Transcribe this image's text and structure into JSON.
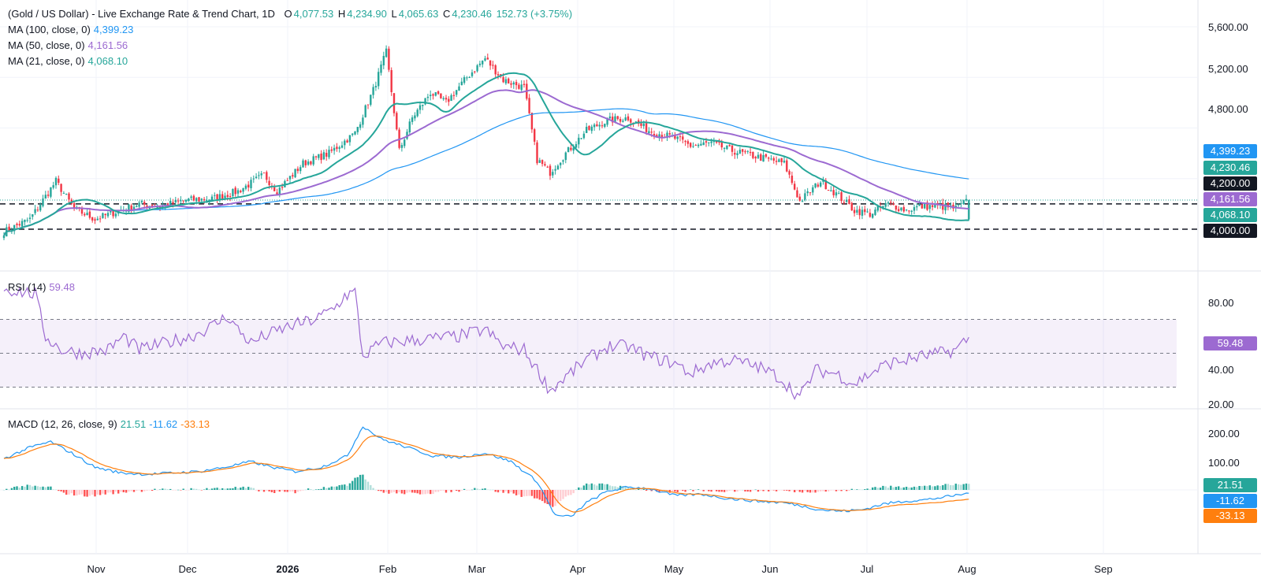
{
  "header": {
    "title": "(Gold / US Dollar) - Live Exchange Rate & Trend Chart, 1D",
    "open_label": "O",
    "open": "4,077.53",
    "high_label": "H",
    "high": "4,234.90",
    "low_label": "L",
    "low": "4,065.63",
    "close_label": "C",
    "close": "4,230.46",
    "change": "152.73 (+3.75%)"
  },
  "indicators": {
    "ma100": {
      "label": "MA (100, close, 0)",
      "value": "4,399.23",
      "color": "#2196f3"
    },
    "ma50": {
      "label": "MA (50, close, 0)",
      "value": "4,161.56",
      "color": "#9c6ad1"
    },
    "ma21": {
      "label": "MA (21, close, 0)",
      "value": "4,068.10",
      "color": "#26a69a"
    },
    "rsi": {
      "label": "RSI (14)",
      "value": "59.48",
      "color": "#9c6ad1"
    },
    "macd": {
      "label": "MACD (12, 26, close, 9)",
      "histogram": "21.51",
      "macd": "-11.62",
      "signal": "-33.13",
      "hist_color": "#26a69a",
      "macd_color": "#2196f3",
      "signal_color": "#ff7f0e"
    }
  },
  "price_axis": {
    "ticks": [
      "5,600.00",
      "5,200.00",
      "4,800.00",
      "4,000.00"
    ],
    "tags": [
      {
        "text": "4,399.23",
        "color": "#2196f3"
      },
      {
        "text": "4,230.46",
        "color": "#26a69a"
      },
      {
        "text": "4,200.00",
        "color": "#131722"
      },
      {
        "text": "4,161.56",
        "color": "#9c6ad1"
      },
      {
        "text": "4,068.10",
        "color": "#26a69a"
      },
      {
        "text": "4,000.00",
        "color": "#131722"
      }
    ]
  },
  "rsi_axis": {
    "ticks": [
      "80.00",
      "40.00",
      "20.00"
    ],
    "tag": "59.48"
  },
  "macd_axis": {
    "ticks": [
      "200.00",
      "100.00"
    ],
    "tags": [
      {
        "text": "21.51",
        "color": "#26a69a"
      },
      {
        "text": "-11.62",
        "color": "#2196f3"
      },
      {
        "text": "-33.13",
        "color": "#ff7f0e"
      }
    ]
  },
  "time_axis": [
    "Nov",
    "Dec",
    "2026",
    "Feb",
    "Mar",
    "Apr",
    "May",
    "Jun",
    "Jul",
    "Aug",
    "Sep"
  ],
  "chart_data": {
    "type": "candlestick",
    "price_range": [
      3600,
      5660
    ],
    "horizontal_levels": [
      4200,
      4000
    ],
    "up_color": "#26a69a",
    "down_color": "#f23645",
    "close_anchors": [
      [
        0,
        3980
      ],
      [
        10,
        4080
      ],
      [
        20,
        4380
      ],
      [
        27,
        4160
      ],
      [
        35,
        4080
      ],
      [
        45,
        4150
      ],
      [
        52,
        4200
      ],
      [
        60,
        4180
      ],
      [
        70,
        4230
      ],
      [
        80,
        4240
      ],
      [
        90,
        4300
      ],
      [
        100,
        4430
      ],
      [
        105,
        4300
      ],
      [
        115,
        4520
      ],
      [
        125,
        4600
      ],
      [
        135,
        4760
      ],
      [
        142,
        5100
      ],
      [
        147,
        5400
      ],
      [
        152,
        4620
      ],
      [
        157,
        4880
      ],
      [
        164,
        5080
      ],
      [
        170,
        5000
      ],
      [
        178,
        5200
      ],
      [
        185,
        5350
      ],
      [
        192,
        5180
      ],
      [
        200,
        5120
      ],
      [
        205,
        4550
      ],
      [
        210,
        4450
      ],
      [
        216,
        4600
      ],
      [
        224,
        4780
      ],
      [
        232,
        4860
      ],
      [
        240,
        4880
      ],
      [
        248,
        4780
      ],
      [
        258,
        4720
      ],
      [
        264,
        4660
      ],
      [
        272,
        4680
      ],
      [
        280,
        4620
      ],
      [
        290,
        4570
      ],
      [
        300,
        4520
      ],
      [
        306,
        4220
      ],
      [
        314,
        4380
      ],
      [
        320,
        4280
      ],
      [
        327,
        4150
      ],
      [
        333,
        4120
      ],
      [
        340,
        4200
      ],
      [
        347,
        4150
      ],
      [
        352,
        4180
      ],
      [
        360,
        4180
      ],
      [
        366,
        4165
      ],
      [
        371,
        4230
      ]
    ],
    "ma21_last": 4068.1,
    "ma50_last": 4161.56,
    "ma100_last": 4399.23,
    "rsi_range": [
      20,
      90
    ],
    "rsi_levels": [
      70,
      50,
      30
    ],
    "rsi_anchors": [
      [
        0,
        88
      ],
      [
        12,
        85
      ],
      [
        16,
        60
      ],
      [
        22,
        52
      ],
      [
        30,
        50
      ],
      [
        40,
        52
      ],
      [
        46,
        60
      ],
      [
        52,
        52
      ],
      [
        62,
        56
      ],
      [
        72,
        60
      ],
      [
        80,
        66
      ],
      [
        86,
        72
      ],
      [
        90,
        64
      ],
      [
        95,
        56
      ],
      [
        100,
        60
      ],
      [
        110,
        66
      ],
      [
        120,
        70
      ],
      [
        128,
        78
      ],
      [
        131,
        84
      ],
      [
        135,
        86
      ],
      [
        138,
        48
      ],
      [
        145,
        56
      ],
      [
        160,
        58
      ],
      [
        175,
        60
      ],
      [
        185,
        64
      ],
      [
        192,
        54
      ],
      [
        200,
        52
      ],
      [
        206,
        38
      ],
      [
        210,
        28
      ],
      [
        216,
        36
      ],
      [
        224,
        46
      ],
      [
        232,
        54
      ],
      [
        240,
        54
      ],
      [
        248,
        48
      ],
      [
        258,
        44
      ],
      [
        264,
        38
      ],
      [
        272,
        44
      ],
      [
        280,
        46
      ],
      [
        290,
        42
      ],
      [
        298,
        36
      ],
      [
        306,
        24
      ],
      [
        312,
        40
      ],
      [
        320,
        38
      ],
      [
        327,
        32
      ],
      [
        333,
        38
      ],
      [
        340,
        44
      ],
      [
        347,
        46
      ],
      [
        352,
        48
      ],
      [
        360,
        50
      ],
      [
        366,
        52
      ],
      [
        371,
        59.48
      ]
    ],
    "macd_range": [
      -110,
      240
    ],
    "macd_anchors": [
      [
        0,
        110
      ],
      [
        10,
        150
      ],
      [
        18,
        170
      ],
      [
        26,
        130
      ],
      [
        35,
        80
      ],
      [
        45,
        60
      ],
      [
        55,
        55
      ],
      [
        65,
        60
      ],
      [
        75,
        65
      ],
      [
        85,
        80
      ],
      [
        95,
        100
      ],
      [
        103,
        80
      ],
      [
        112,
        65
      ],
      [
        122,
        80
      ],
      [
        132,
        120
      ],
      [
        138,
        225
      ],
      [
        145,
        180
      ],
      [
        155,
        150
      ],
      [
        165,
        120
      ],
      [
        175,
        115
      ],
      [
        185,
        130
      ],
      [
        195,
        100
      ],
      [
        205,
        30
      ],
      [
        212,
        -90
      ],
      [
        218,
        -95
      ],
      [
        224,
        -45
      ],
      [
        232,
        -5
      ],
      [
        240,
        10
      ],
      [
        248,
        5
      ],
      [
        258,
        -20
      ],
      [
        268,
        -15
      ],
      [
        278,
        -30
      ],
      [
        290,
        -40
      ],
      [
        300,
        -45
      ],
      [
        306,
        -55
      ],
      [
        314,
        -70
      ],
      [
        322,
        -75
      ],
      [
        330,
        -70
      ],
      [
        338,
        -50
      ],
      [
        346,
        -40
      ],
      [
        354,
        -35
      ],
      [
        362,
        -25
      ],
      [
        371,
        -11.62
      ]
    ],
    "signal_last": -33.13,
    "hist_last": 21.51
  }
}
